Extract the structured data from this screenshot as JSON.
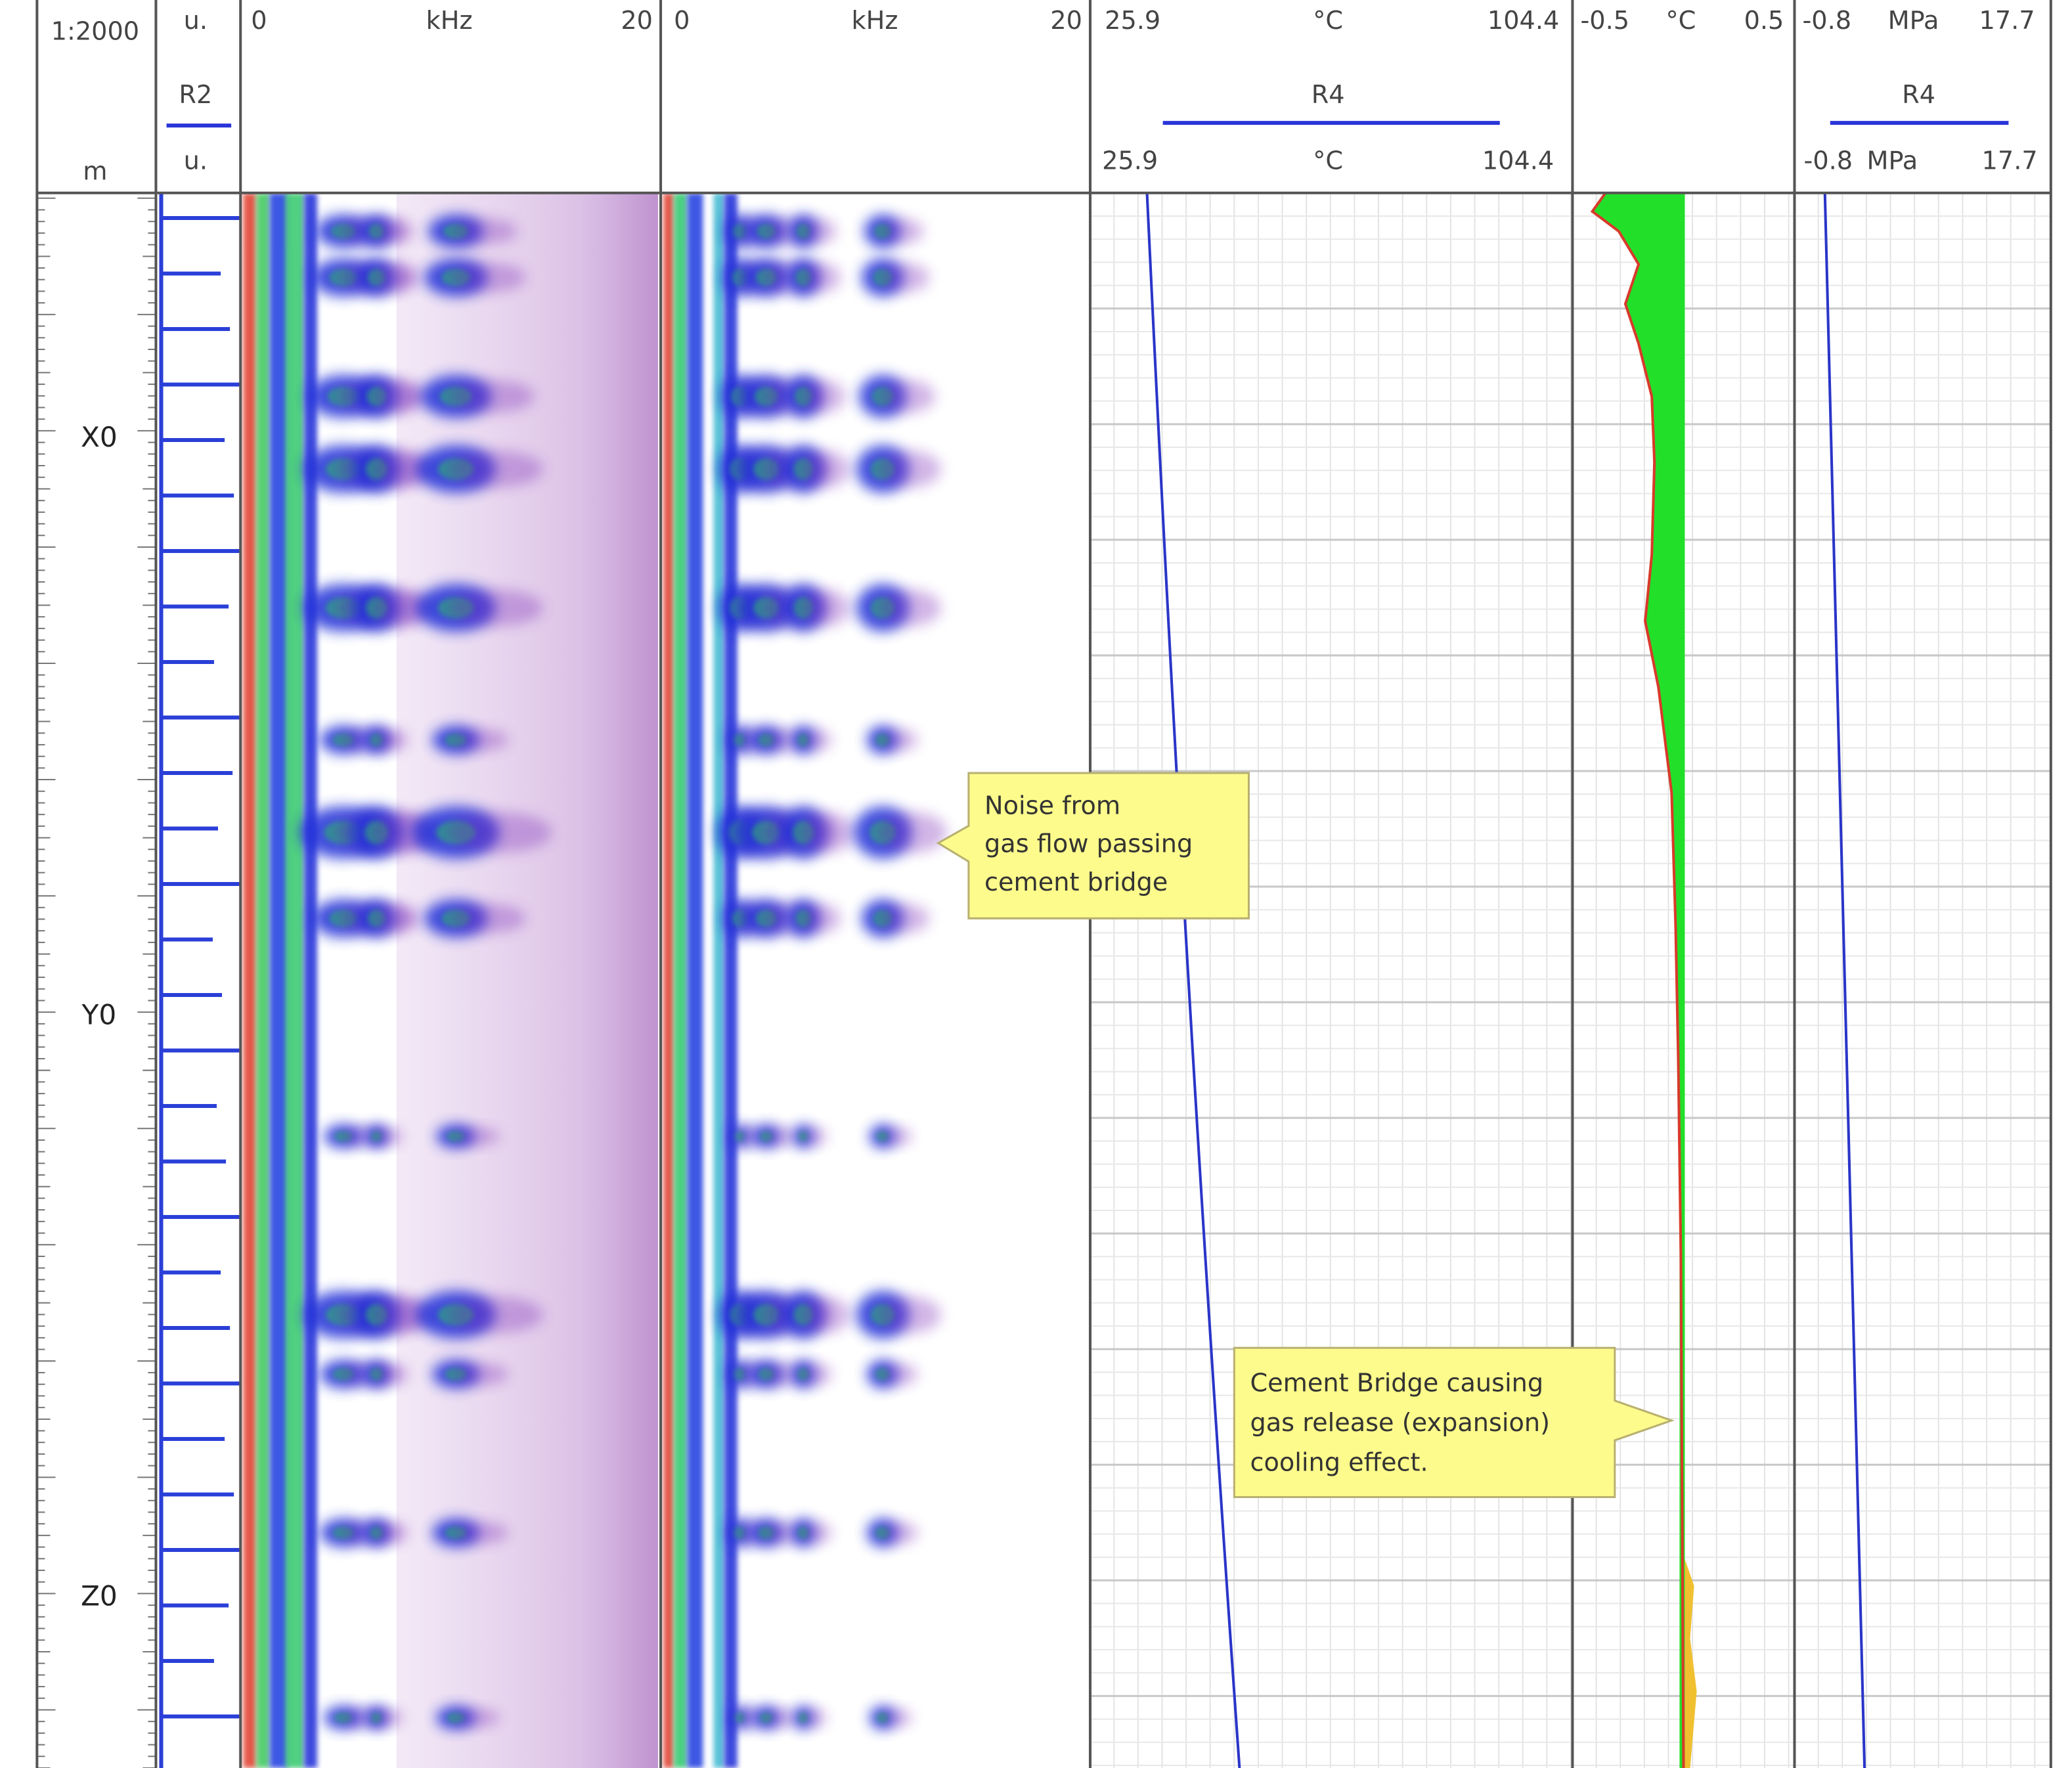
{
  "header": {
    "scale": "1:2000",
    "depth_unit": "m",
    "track2": {
      "top_unit": "u.",
      "name": "R2",
      "unit": "u."
    },
    "spectrum1": {
      "min": "0",
      "unit": "kHz",
      "max": "20"
    },
    "spectrum2": {
      "min": "0",
      "unit": "kHz",
      "max": "20"
    },
    "temperature": {
      "top": [
        "25.9",
        "°C",
        "104.4"
      ],
      "name": "R4",
      "bottom": [
        "25.9",
        "°C",
        "104.4"
      ]
    },
    "diff_temperature": {
      "top": [
        "-0.5",
        "°C",
        "0.5"
      ]
    },
    "pressure": {
      "top": [
        "-0.8",
        "MPa",
        "17.7"
      ],
      "name": "R4",
      "bottom": [
        "-0.8",
        "MPa",
        "17.7"
      ]
    }
  },
  "depth_labels": [
    "X0",
    "Y0",
    "Z0"
  ],
  "annotations": [
    {
      "lines": [
        "Noise from",
        "gas flow passing",
        "cement bridge"
      ]
    },
    {
      "lines": [
        "Cement Bridge causing",
        "gas release (expansion)",
        "cooling effect."
      ]
    }
  ]
}
